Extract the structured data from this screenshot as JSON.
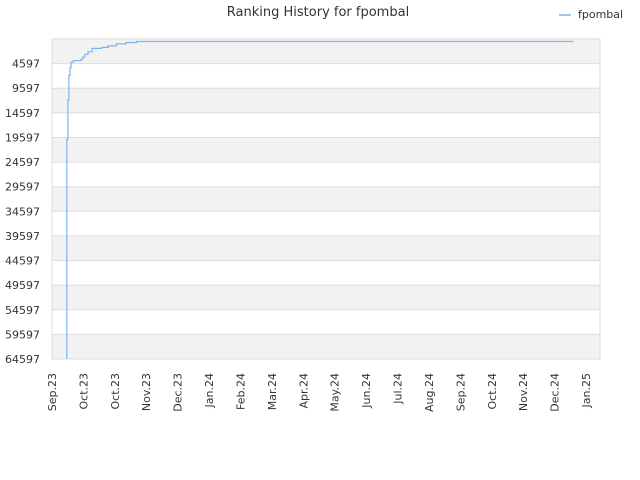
{
  "chart_data": {
    "type": "line",
    "title": "Ranking History for fpombal",
    "legend": {
      "position": "top-right",
      "entries": [
        "fpombal"
      ]
    },
    "x_tick_labels": [
      "Sep.23",
      "Oct.23",
      "Oct.23",
      "Nov.23",
      "Dec.23",
      "Jan.24",
      "Feb.24",
      "Mar.24",
      "Apr.24",
      "May.24",
      "Jun.24",
      "Jul.24",
      "Aug.24",
      "Sep.24",
      "Oct.24",
      "Nov.24",
      "Dec.24",
      "Jan.25"
    ],
    "y_tick_labels": [
      "4597",
      "9597",
      "14597",
      "19597",
      "24597",
      "29597",
      "34597",
      "39597",
      "44597",
      "49597",
      "54597",
      "59597",
      "64597"
    ],
    "y_axis": {
      "inverted": true,
      "range": [
        -403,
        64597
      ]
    },
    "x_axis": {
      "range": [
        "2023-09-01",
        "2025-01-31"
      ]
    },
    "grid": true,
    "colors": {
      "series": "#7cb5ec",
      "band": "#f2f2f2",
      "grid": "#dddddd"
    },
    "series": [
      {
        "name": "fpombal",
        "points": [
          [
            "2023-09-15",
            64597
          ],
          [
            "2023-09-15",
            20000
          ],
          [
            "2023-09-16",
            16000
          ],
          [
            "2023-09-16",
            12000
          ],
          [
            "2023-09-17",
            9800
          ],
          [
            "2023-09-17",
            7000
          ],
          [
            "2023-09-18",
            5400
          ],
          [
            "2023-09-19",
            4300
          ],
          [
            "2023-09-21",
            4000
          ],
          [
            "2023-09-28",
            3800
          ],
          [
            "2023-09-30",
            3300
          ],
          [
            "2023-10-02",
            2700
          ],
          [
            "2023-10-05",
            2200
          ],
          [
            "2023-10-09",
            1500
          ],
          [
            "2023-10-18",
            1300
          ],
          [
            "2023-10-24",
            1000
          ],
          [
            "2023-11-01",
            600
          ],
          [
            "2023-11-10",
            300
          ],
          [
            "2023-11-20",
            100
          ],
          [
            "2024-01-01",
            100
          ],
          [
            "2024-06-01",
            100
          ],
          [
            "2024-09-15",
            100
          ],
          [
            "2024-10-15",
            100
          ],
          [
            "2025-01-01",
            100
          ],
          [
            "2025-01-06",
            100
          ]
        ]
      }
    ]
  }
}
